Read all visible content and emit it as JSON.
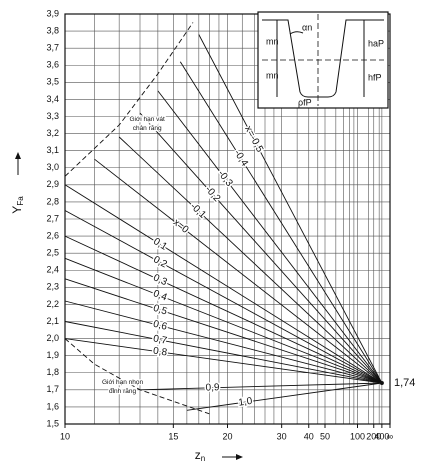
{
  "chart_data": {
    "type": "line",
    "x_label": {
      "main": "z",
      "sub": "n"
    },
    "y_label": {
      "main": "Y",
      "sub": "Fa"
    },
    "xscale": "reciprocal",
    "xlim": [
      10,
      null
    ],
    "ylim": [
      1.5,
      3.9
    ],
    "xticks": [
      10,
      15,
      20,
      30,
      40,
      50,
      100,
      200,
      400,
      {
        "value": null,
        "label": "∞"
      }
    ],
    "xgrid": [
      11,
      12,
      13,
      14,
      15,
      16,
      17,
      18,
      19,
      20,
      22,
      24,
      26,
      28,
      30,
      35,
      40,
      45,
      50,
      60,
      70,
      80,
      90,
      100,
      150,
      200,
      300,
      400
    ],
    "yticks": [
      {
        "value": 1.5,
        "label": "1,5"
      },
      {
        "value": 1.6,
        "label": "1,6"
      },
      {
        "value": 1.7,
        "label": "1,7"
      },
      {
        "value": 1.8,
        "label": "1,8"
      },
      {
        "value": 1.9,
        "label": "1,9"
      },
      {
        "value": 2.0,
        "label": "2,0"
      },
      {
        "value": 2.1,
        "label": "2,1"
      },
      {
        "value": 2.2,
        "label": "2,2"
      },
      {
        "value": 2.3,
        "label": "2,3"
      },
      {
        "value": 2.4,
        "label": "2,4"
      },
      {
        "value": 2.5,
        "label": "2,5"
      },
      {
        "value": 2.6,
        "label": "2,6"
      },
      {
        "value": 2.7,
        "label": "2,7"
      },
      {
        "value": 2.8,
        "label": "2,8"
      },
      {
        "value": 2.9,
        "label": "2,9"
      },
      {
        "value": 3.0,
        "label": "3,0"
      },
      {
        "value": 3.1,
        "label": "3,1"
      },
      {
        "value": 3.2,
        "label": "3,2"
      },
      {
        "value": 3.3,
        "label": "3,3"
      },
      {
        "value": 3.4,
        "label": "3,4"
      },
      {
        "value": 3.5,
        "label": "3,5"
      },
      {
        "value": 3.6,
        "label": "3,6"
      },
      {
        "value": 3.7,
        "label": "3,7"
      },
      {
        "value": 3.8,
        "label": "3,8"
      },
      {
        "value": 3.9,
        "label": "3,9"
      }
    ],
    "grid": true,
    "color": "#111111",
    "series": [
      {
        "name": "x=-0,5",
        "x": [
          17,
          400
        ],
        "values": [
          3.78,
          1.74
        ]
      },
      {
        "name": "-0,4",
        "x": [
          15.5,
          400
        ],
        "values": [
          3.62,
          1.74
        ]
      },
      {
        "name": "-0,3",
        "x": [
          14,
          400
        ],
        "values": [
          3.45,
          1.74
        ]
      },
      {
        "name": "-0,2",
        "x": [
          13,
          400
        ],
        "values": [
          3.32,
          1.74
        ]
      },
      {
        "name": "-0,1",
        "x": [
          12,
          400
        ],
        "values": [
          3.18,
          1.74
        ]
      },
      {
        "name": "x=0",
        "x": [
          11,
          400
        ],
        "values": [
          3.05,
          1.74
        ]
      },
      {
        "name": "0,1",
        "x": [
          10,
          400
        ],
        "values": [
          2.9,
          1.74
        ]
      },
      {
        "name": "0,2",
        "x": [
          10,
          400
        ],
        "values": [
          2.75,
          1.74
        ]
      },
      {
        "name": "0,3",
        "x": [
          10,
          400
        ],
        "values": [
          2.6,
          1.74
        ]
      },
      {
        "name": "0,4",
        "x": [
          10,
          400
        ],
        "values": [
          2.47,
          1.74
        ]
      },
      {
        "name": "0,5",
        "x": [
          10,
          400
        ],
        "values": [
          2.35,
          1.74
        ]
      },
      {
        "name": "0,6",
        "x": [
          10,
          400
        ],
        "values": [
          2.22,
          1.74
        ]
      },
      {
        "name": "0,7",
        "x": [
          10,
          400
        ],
        "values": [
          2.1,
          1.74
        ]
      },
      {
        "name": "0,8",
        "x": [
          10,
          400
        ],
        "values": [
          2.0,
          1.74
        ]
      },
      {
        "name": "0,9",
        "x": [
          13,
          400
        ],
        "values": [
          1.7,
          1.74
        ]
      },
      {
        "name": "1,0",
        "x": [
          16,
          400
        ],
        "values": [
          1.58,
          1.74
        ]
      }
    ],
    "envelopes": [
      {
        "name": [
          "Giới hạn vát",
          "chân răng"
        ],
        "x": [
          10,
          12,
          14,
          16.5
        ],
        "values": [
          2.95,
          3.25,
          3.55,
          3.85
        ]
      },
      {
        "name": [
          "Giới hạn nhọn",
          "đỉnh răng"
        ],
        "x": [
          10,
          11,
          13,
          18
        ],
        "values": [
          2.0,
          1.85,
          1.7,
          1.56
        ]
      }
    ],
    "end_label": {
      "value": 1.74,
      "label": "1,74"
    },
    "inset_labels": [
      "αn",
      "mn",
      "mn",
      "haP",
      "hfP",
      "ρfP"
    ]
  }
}
